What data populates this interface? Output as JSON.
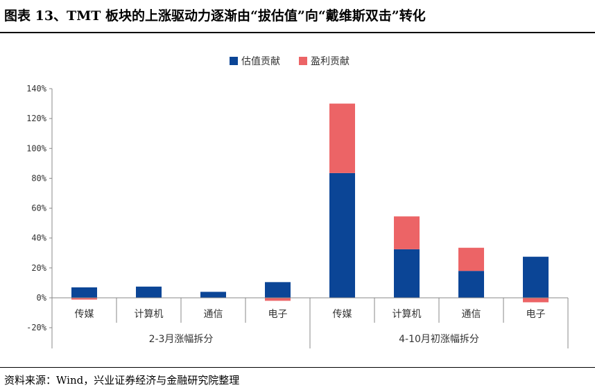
{
  "header": {
    "title": "图表 13、TMT 板块的上涨驱动力逐渐由“拔估值”向“戴维斯双击”转化"
  },
  "footer": {
    "source": "资料来源：Wind，兴业证券经济与金融研究院整理"
  },
  "chart_data": {
    "type": "bar",
    "stacked": true,
    "categories": [
      "传媒",
      "计算机",
      "通信",
      "电子",
      "传媒",
      "计算机",
      "通信",
      "电子"
    ],
    "groups": [
      {
        "label": "2-3月涨幅拆分",
        "count": 4
      },
      {
        "label": "4-10月初涨幅拆分",
        "count": 4
      }
    ],
    "series": [
      {
        "name": "估值贡献",
        "color": "#0B4596",
        "values": [
          7,
          7.5,
          4,
          10.5,
          83.5,
          32.5,
          18,
          27.5
        ]
      },
      {
        "name": "盈利贡献",
        "color": "#EC6466",
        "values": [
          -1.2,
          0,
          0,
          -2,
          46.5,
          22,
          15.5,
          -3
        ]
      }
    ],
    "ylim": [
      -20,
      140
    ],
    "yticks": [
      "-20%",
      "0%",
      "20%",
      "40%",
      "60%",
      "80%",
      "100%",
      "120%",
      "140%"
    ],
    "ytick_values": [
      -20,
      0,
      20,
      40,
      60,
      80,
      100,
      120,
      140
    ],
    "legend_position": "top-center",
    "grid": false
  }
}
